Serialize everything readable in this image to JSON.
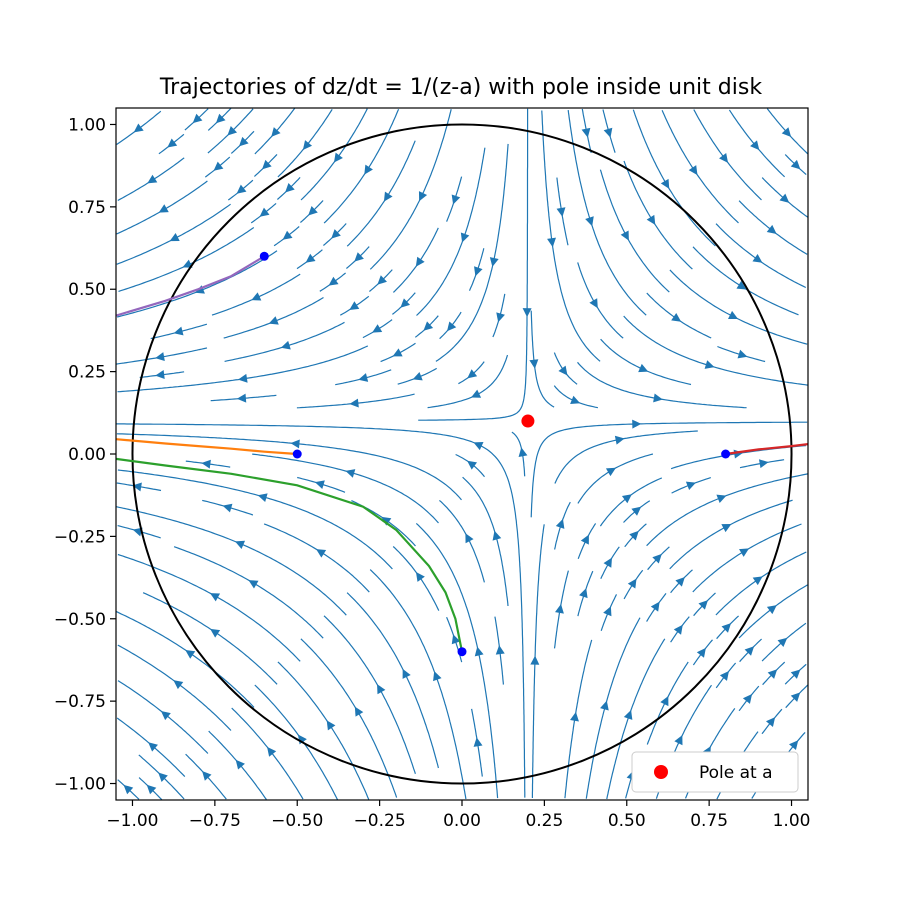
{
  "chart_data": {
    "type": "streamplot",
    "title": "Trajectories of dz/dt = 1/(z-a) with pole inside unit disk",
    "xlabel": "",
    "ylabel": "",
    "xlim": [
      -1.05,
      1.05
    ],
    "ylim": [
      -1.05,
      1.05
    ],
    "x_ticks": [
      -1.0,
      -0.75,
      -0.5,
      -0.25,
      0.0,
      0.25,
      0.5,
      0.75,
      1.0
    ],
    "y_ticks": [
      -1.0,
      -0.75,
      -0.5,
      -0.25,
      0.0,
      0.25,
      0.5,
      0.75,
      1.0
    ],
    "x_tick_labels": [
      "−1.00",
      "−0.75",
      "−0.50",
      "−0.25",
      "0.00",
      "0.25",
      "0.50",
      "0.75",
      "1.00"
    ],
    "y_tick_labels": [
      "−1.00",
      "−0.75",
      "−0.50",
      "−0.25",
      "0.00",
      "0.25",
      "0.50",
      "0.75",
      "1.00"
    ],
    "grid": false,
    "legend_position": "lower-right",
    "pole": {
      "label": "Pole at a",
      "x": 0.2,
      "y": 0.1,
      "color": "#ff0000"
    },
    "unit_circle": {
      "cx": 0,
      "cy": 0,
      "r": 1,
      "color": "#000000"
    },
    "streamline_color": "#1f77b4",
    "start_point_color": "#0000ff",
    "trajectories": [
      {
        "color": "#ff7f0e",
        "start": [
          -0.5,
          0.0
        ],
        "points": [
          [
            -0.5,
            0.0
          ],
          [
            -0.6,
            0.007
          ],
          [
            -0.7,
            0.016
          ],
          [
            -0.8,
            0.024
          ],
          [
            -0.9,
            0.032
          ],
          [
            -1.05,
            0.045
          ]
        ]
      },
      {
        "color": "#2ca02c",
        "start": [
          0.0,
          -0.6
        ],
        "points": [
          [
            0.0,
            -0.6
          ],
          [
            -0.02,
            -0.5
          ],
          [
            -0.05,
            -0.42
          ],
          [
            -0.1,
            -0.34
          ],
          [
            -0.2,
            -0.23
          ],
          [
            -0.3,
            -0.16
          ],
          [
            -0.5,
            -0.095
          ],
          [
            -0.7,
            -0.06
          ],
          [
            -0.9,
            -0.035
          ],
          [
            -1.05,
            -0.015
          ]
        ]
      },
      {
        "color": "#d62728",
        "start": [
          0.8,
          0.0
        ],
        "points": [
          [
            0.8,
            0.0
          ],
          [
            0.9,
            0.014
          ],
          [
            1.0,
            0.024
          ],
          [
            1.05,
            0.03
          ]
        ]
      },
      {
        "color": "#9467bd",
        "start": [
          -0.6,
          0.6
        ],
        "points": [
          [
            -0.6,
            0.6
          ],
          [
            -0.7,
            0.54
          ],
          [
            -0.8,
            0.5
          ],
          [
            -0.9,
            0.465
          ],
          [
            -1.05,
            0.42
          ]
        ]
      }
    ]
  }
}
